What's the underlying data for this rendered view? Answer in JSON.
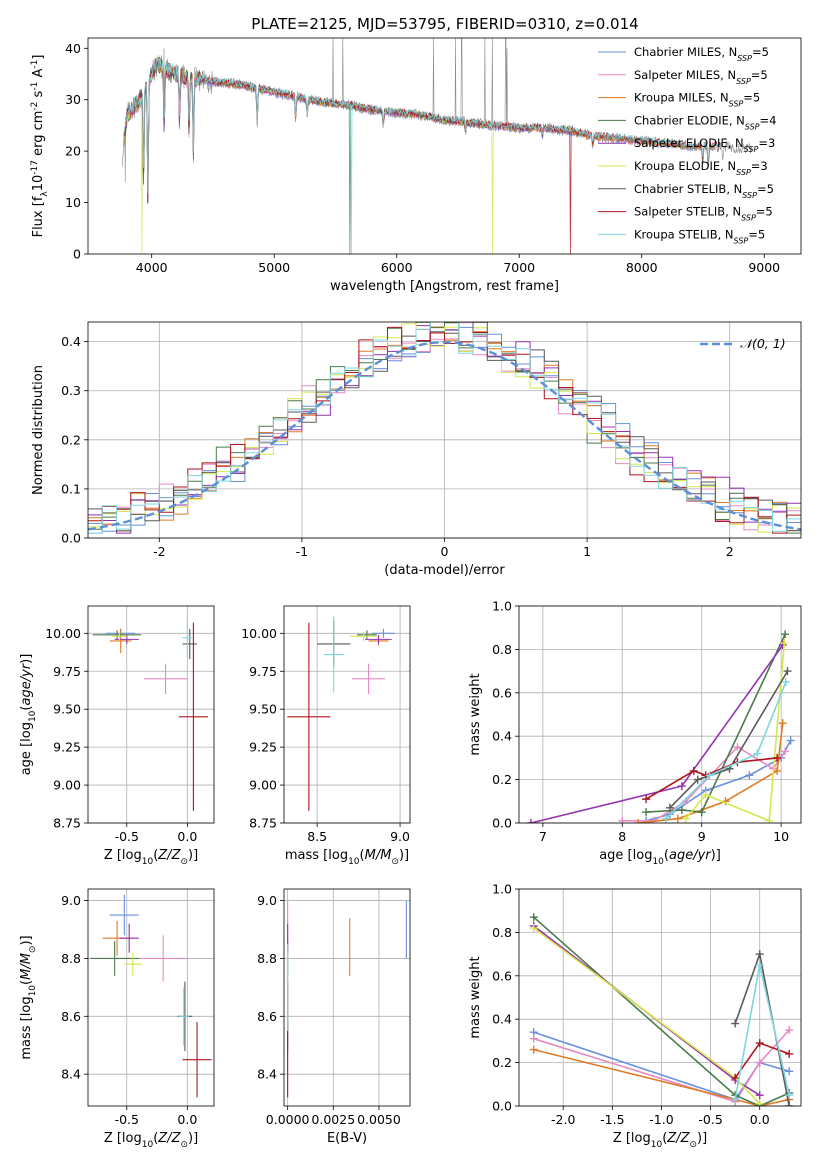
{
  "figure": {
    "title": "PLATE=2125, MJD=53795, FIBERID=0310, z=0.014"
  },
  "models": [
    {
      "name": "Chabrier MILES",
      "nssp": "5",
      "color": "#6a8fdc"
    },
    {
      "name": "Salpeter MILES",
      "nssp": "5",
      "color": "#e68ac4"
    },
    {
      "name": "Kroupa MILES",
      "nssp": "5",
      "color": "#e07b22"
    },
    {
      "name": "Chabrier ELODIE",
      "nssp": "4",
      "color": "#4a7a4a"
    },
    {
      "name": "Salpeter ELODIE",
      "nssp": "3",
      "color": "#9533b0"
    },
    {
      "name": "Kroupa ELODIE",
      "nssp": "3",
      "color": "#d4e84c"
    },
    {
      "name": "Chabrier STELIB",
      "nssp": "5",
      "color": "#5a5a5a"
    },
    {
      "name": "Salpeter STELIB",
      "nssp": "5",
      "color": "#b0141e"
    },
    {
      "name": "Kroupa STELIB",
      "nssp": "5",
      "color": "#7fd6e0"
    }
  ],
  "chart_data": [
    {
      "id": "spectrum",
      "type": "line",
      "xlabel": "wavelength [Angstrom, rest frame]",
      "ylabel": "Flux [f_λ 10^-17 erg cm^-2 s^-1 A^-1]",
      "xlim": [
        3480,
        9300
      ],
      "ylim": [
        0,
        42
      ],
      "xticks": [
        4000,
        5000,
        6000,
        7000,
        8000,
        9000
      ],
      "yticks": [
        0,
        10,
        20,
        30,
        40
      ],
      "grid": false,
      "legend_position": "top-right",
      "continuum": [
        [
          3760,
          20
        ],
        [
          3800,
          27
        ],
        [
          3900,
          30
        ],
        [
          3950,
          32
        ],
        [
          4000,
          35
        ],
        [
          4050,
          37
        ],
        [
          4100,
          36
        ],
        [
          4200,
          35
        ],
        [
          4300,
          34
        ],
        [
          4400,
          34
        ],
        [
          4500,
          33.5
        ],
        [
          4700,
          33
        ],
        [
          4900,
          32
        ],
        [
          5000,
          31.5
        ],
        [
          5200,
          30.5
        ],
        [
          5400,
          29.5
        ],
        [
          5600,
          29
        ],
        [
          5800,
          28
        ],
        [
          6000,
          27.5
        ],
        [
          6200,
          27
        ],
        [
          6400,
          26
        ],
        [
          6600,
          25.5
        ],
        [
          6800,
          25
        ],
        [
          7000,
          24.5
        ],
        [
          7200,
          24.5
        ],
        [
          7400,
          24
        ],
        [
          7600,
          23
        ],
        [
          7800,
          22.5
        ],
        [
          8000,
          22
        ],
        [
          8200,
          21.5
        ],
        [
          8400,
          21
        ],
        [
          8600,
          21
        ],
        [
          8900,
          20.5
        ]
      ],
      "absorption_lines": [
        [
          3934,
          13
        ],
        [
          3969,
          10
        ],
        [
          4102,
          24
        ],
        [
          4227,
          26
        ],
        [
          4305,
          24
        ],
        [
          4340,
          20
        ],
        [
          4861,
          25
        ],
        [
          5175,
          26
        ],
        [
          5270,
          27
        ],
        [
          5890,
          25
        ],
        [
          6563,
          24
        ],
        [
          7190,
          23
        ],
        [
          7600,
          21
        ],
        [
          8498,
          18
        ],
        [
          8542,
          17
        ],
        [
          8662,
          18
        ]
      ],
      "dropouts": [
        {
          "model": "Kroupa ELODIE",
          "x": 3920
        },
        {
          "model": "Chabrier ELODIE",
          "x": 5620
        },
        {
          "model": "Kroupa STELIB",
          "x": 5630
        },
        {
          "model": "Kroupa ELODIE",
          "x": 6780
        },
        {
          "model": "Salpeter STELIB",
          "x": 7420
        }
      ],
      "observed_spikes": [
        [
          3760,
          17
        ],
        [
          3785,
          14
        ],
        [
          4100,
          40
        ],
        [
          5480,
          42
        ],
        [
          5560,
          42
        ],
        [
          6300,
          42
        ],
        [
          6480,
          42
        ],
        [
          6530,
          42
        ],
        [
          6720,
          42
        ],
        [
          6780,
          42
        ],
        [
          6890,
          42
        ],
        [
          6900,
          40
        ]
      ]
    },
    {
      "id": "residuals",
      "type": "histogram",
      "xlabel": "(data-model)/error",
      "ylabel": "Normed distribution",
      "xlim": [
        -2.5,
        2.5
      ],
      "ylim": [
        0,
        0.44
      ],
      "xticks": [
        -2,
        -1,
        0,
        1,
        2
      ],
      "yticks": [
        0.0,
        0.1,
        0.2,
        0.3,
        0.4
      ],
      "grid": true,
      "bins": 50,
      "reference_curve": {
        "label": "𝒩(0, 1)",
        "mean": 0,
        "sigma": 1,
        "color": "#5b8fd8",
        "style": "dashed"
      },
      "legend_position": "top-right",
      "series_shift": [
        0.08,
        -0.05,
        0.03,
        -0.1,
        0.12,
        -0.02,
        0.05,
        -0.07,
        0.0
      ]
    },
    {
      "id": "age_vs_Z",
      "type": "errorbar",
      "xlabel": "Z [log10(Z/Z⊙)]",
      "ylabel": "age [log10(age/yr)]",
      "xlim": [
        -0.82,
        0.22
      ],
      "ylim": [
        8.75,
        10.18
      ],
      "xticks": [
        -0.5,
        0.0
      ],
      "yticks": [
        8.75,
        9.0,
        9.25,
        9.5,
        9.75,
        10.0
      ],
      "grid": true,
      "points": [
        {
          "x": -0.55,
          "y": 10.0,
          "xerr": 0.12,
          "yerr": 0.03
        },
        {
          "x": -0.18,
          "y": 9.7,
          "xerr": 0.18,
          "yerr": 0.1
        },
        {
          "x": -0.55,
          "y": 9.95,
          "xerr": 0.09,
          "yerr": 0.08
        },
        {
          "x": -0.58,
          "y": 9.99,
          "xerr": 0.2,
          "yerr": 0.03
        },
        {
          "x": -0.5,
          "y": 9.96,
          "xerr": 0.1,
          "yerr": 0.03
        },
        {
          "x": -0.56,
          "y": 9.98,
          "xerr": 0.06,
          "yerr": 0.03
        },
        {
          "x": 0.02,
          "y": 9.93,
          "xerr": 0.06,
          "yerr": 0.1
        },
        {
          "x": 0.05,
          "y": 9.45,
          "xerr": 0.12,
          "yerr": 0.62
        },
        {
          "x": 0.0,
          "y": 9.97,
          "xerr": 0.04,
          "yerr": 0.13
        }
      ]
    },
    {
      "id": "age_vs_mass",
      "type": "errorbar",
      "xlabel": "mass [log10(M/M⊙)]",
      "ylabel": "",
      "xlim": [
        8.3,
        9.06
      ],
      "ylim": [
        8.75,
        10.18
      ],
      "xticks": [
        8.5,
        9.0
      ],
      "yticks": [
        8.75,
        9.0,
        9.25,
        9.5,
        9.75,
        10.0
      ],
      "grid": true,
      "points": [
        {
          "x": 8.9,
          "y": 10.0,
          "xerr": 0.07,
          "yerr": 0.03
        },
        {
          "x": 8.81,
          "y": 9.7,
          "xerr": 0.1,
          "yerr": 0.1
        },
        {
          "x": 8.87,
          "y": 9.95,
          "xerr": 0.06,
          "yerr": 0.03
        },
        {
          "x": 8.8,
          "y": 9.99,
          "xerr": 0.06,
          "yerr": 0.03
        },
        {
          "x": 8.87,
          "y": 9.96,
          "xerr": 0.08,
          "yerr": 0.03
        },
        {
          "x": 8.78,
          "y": 9.98,
          "xerr": 0.08,
          "yerr": 0.03
        },
        {
          "x": 8.6,
          "y": 9.93,
          "xerr": 0.1,
          "yerr": 0.15
        },
        {
          "x": 8.45,
          "y": 9.45,
          "xerr": 0.13,
          "yerr": 0.62
        },
        {
          "x": 8.6,
          "y": 9.86,
          "xerr": 0.06,
          "yerr": 0.25
        }
      ]
    },
    {
      "id": "massweight_vs_age",
      "type": "line",
      "xlabel": "age [log10(age/yr)]",
      "ylabel": "mass weight",
      "xlim": [
        6.7,
        10.25
      ],
      "ylim": [
        0,
        1.0
      ],
      "xticks": [
        7,
        8,
        9,
        10
      ],
      "yticks": [
        0.0,
        0.2,
        0.4,
        0.6,
        0.8,
        1.0
      ],
      "grid": true,
      "series": [
        {
          "model": "Chabrier MILES",
          "x": [
            8.3,
            8.6,
            9.05,
            9.6,
            10.0,
            10.12
          ],
          "y": [
            0.01,
            0.04,
            0.15,
            0.22,
            0.3,
            0.38
          ]
        },
        {
          "model": "Salpeter MILES",
          "x": [
            8.0,
            8.4,
            8.8,
            9.45,
            9.9,
            10.05
          ],
          "y": [
            0.01,
            0.01,
            0.1,
            0.35,
            0.25,
            0.33
          ]
        },
        {
          "model": "Kroupa MILES",
          "x": [
            8.2,
            8.7,
            9.3,
            9.95,
            10.02
          ],
          "y": [
            0.0,
            0.02,
            0.1,
            0.24,
            0.46
          ]
        },
        {
          "model": "Chabrier ELODIE",
          "x": [
            8.3,
            8.75,
            9.0,
            10.05
          ],
          "y": [
            0.05,
            0.06,
            0.05,
            0.87
          ]
        },
        {
          "model": "Salpeter ELODIE",
          "x": [
            6.85,
            8.75,
            10.02
          ],
          "y": [
            0.0,
            0.17,
            0.82
          ]
        },
        {
          "model": "Kroupa ELODIE",
          "x": [
            8.8,
            9.05,
            9.85,
            10.04
          ],
          "y": [
            0.02,
            0.13,
            0.01,
            0.83
          ]
        },
        {
          "model": "Chabrier STELIB",
          "x": [
            8.6,
            8.95,
            9.35,
            10.08
          ],
          "y": [
            0.07,
            0.2,
            0.25,
            0.7
          ]
        },
        {
          "model": "Salpeter STELIB",
          "x": [
            8.3,
            8.9,
            9.05,
            9.45,
            9.95
          ],
          "y": [
            0.11,
            0.24,
            0.22,
            0.28,
            0.3
          ]
        },
        {
          "model": "Kroupa STELIB",
          "x": [
            8.55,
            9.1,
            9.7,
            10.06
          ],
          "y": [
            0.02,
            0.22,
            0.32,
            0.65
          ]
        }
      ]
    },
    {
      "id": "mass_vs_Z",
      "type": "errorbar",
      "xlabel": "Z [log10(Z/Z⊙)]",
      "ylabel": "mass [log10(M/M⊙)]",
      "xlim": [
        -0.82,
        0.22
      ],
      "ylim": [
        8.29,
        9.04
      ],
      "xticks": [
        -0.5,
        0.0
      ],
      "yticks": [
        8.4,
        8.6,
        8.8,
        9.0
      ],
      "grid": true,
      "points": [
        {
          "x": -0.52,
          "y": 8.95,
          "xerr": 0.12,
          "yerr": 0.07
        },
        {
          "x": -0.2,
          "y": 8.8,
          "xerr": 0.2,
          "yerr": 0.08
        },
        {
          "x": -0.58,
          "y": 8.87,
          "xerr": 0.12,
          "yerr": 0.06
        },
        {
          "x": -0.6,
          "y": 8.8,
          "xerr": 0.2,
          "yerr": 0.06
        },
        {
          "x": -0.48,
          "y": 8.87,
          "xerr": 0.08,
          "yerr": 0.05
        },
        {
          "x": -0.45,
          "y": 8.78,
          "xerr": 0.07,
          "yerr": 0.04
        },
        {
          "x": -0.02,
          "y": 8.6,
          "xerr": 0.06,
          "yerr": 0.12
        },
        {
          "x": 0.08,
          "y": 8.45,
          "xerr": 0.12,
          "yerr": 0.13
        },
        {
          "x": -0.03,
          "y": 8.6,
          "xerr": 0.04,
          "yerr": 0.1
        }
      ]
    },
    {
      "id": "mass_vs_EBV",
      "type": "errorbar",
      "xlabel": "E(B-V)",
      "ylabel": "",
      "xlim": [
        -0.0002,
        0.0067
      ],
      "ylim": [
        8.29,
        9.04
      ],
      "xticks": [
        0.0,
        0.0025,
        0.005
      ],
      "xtick_labels": [
        "0.0000",
        "0.0025",
        "0.0050"
      ],
      "yticks": [
        8.4,
        8.6,
        8.8,
        9.0
      ],
      "grid": true,
      "points": [
        {
          "x": 0.0065,
          "y": 8.9,
          "xerr": 0.0,
          "yerr": 0.1
        },
        {
          "x": 0.0,
          "y": 8.8,
          "xerr": 0.0,
          "yerr": 0.2
        },
        {
          "x": 0.0034,
          "y": 8.84,
          "xerr": 0.0,
          "yerr": 0.1
        },
        {
          "x": 0.0,
          "y": 8.8,
          "xerr": 0.0,
          "yerr": 0.06
        },
        {
          "x": 0.0,
          "y": 8.87,
          "xerr": 0.0,
          "yerr": 0.05
        },
        {
          "x": 0.0,
          "y": 8.78,
          "xerr": 0.0,
          "yerr": 0.04
        },
        {
          "x": 0.0,
          "y": 8.6,
          "xerr": 0.0,
          "yerr": 0.12
        },
        {
          "x": 0.0,
          "y": 8.45,
          "xerr": 0.0,
          "yerr": 0.13
        },
        {
          "x": 0.0,
          "y": 8.7,
          "xerr": 0.0,
          "yerr": 0.15
        }
      ]
    },
    {
      "id": "massweight_vs_Z",
      "type": "line",
      "xlabel": "Z [log10(Z/Z⊙)]",
      "ylabel": "mass weight",
      "xlim": [
        -2.45,
        0.42
      ],
      "ylim": [
        0,
        1.0
      ],
      "xticks": [
        -2.0,
        -1.5,
        -1.0,
        -0.5,
        0.0
      ],
      "yticks": [
        0.0,
        0.2,
        0.4,
        0.6,
        0.8,
        1.0
      ],
      "grid": true,
      "series": [
        {
          "model": "Chabrier MILES",
          "x": [
            -2.3,
            -0.25,
            0.0,
            0.3
          ],
          "y": [
            0.34,
            0.03,
            0.2,
            0.16
          ]
        },
        {
          "model": "Salpeter MILES",
          "x": [
            -2.3,
            -0.25,
            0.0,
            0.3
          ],
          "y": [
            0.31,
            0.02,
            0.2,
            0.35
          ]
        },
        {
          "model": "Kroupa MILES",
          "x": [
            -2.3,
            -0.25,
            0.0,
            0.3
          ],
          "y": [
            0.26,
            0.03,
            0.0,
            0.03
          ]
        },
        {
          "model": "Chabrier ELODIE",
          "x": [
            -2.3,
            -0.25,
            0.0,
            0.3
          ],
          "y": [
            0.87,
            0.05,
            0.0,
            0.06
          ]
        },
        {
          "model": "Salpeter ELODIE",
          "x": [
            -2.3,
            -0.25,
            0.0
          ],
          "y": [
            0.83,
            0.12,
            0.05
          ]
        },
        {
          "model": "Kroupa ELODIE",
          "x": [
            -2.3,
            -0.25,
            0.0
          ],
          "y": [
            0.82,
            0.13,
            0.01
          ]
        },
        {
          "model": "Chabrier STELIB",
          "x": [
            -0.25,
            0.0,
            0.3
          ],
          "y": [
            0.38,
            0.7,
            0.0
          ]
        },
        {
          "model": "Salpeter STELIB",
          "x": [
            -0.25,
            0.0,
            0.3
          ],
          "y": [
            0.13,
            0.29,
            0.24
          ]
        },
        {
          "model": "Kroupa STELIB",
          "x": [
            -0.25,
            0.0,
            0.3
          ],
          "y": [
            0.03,
            0.65,
            0.05
          ]
        }
      ]
    }
  ]
}
